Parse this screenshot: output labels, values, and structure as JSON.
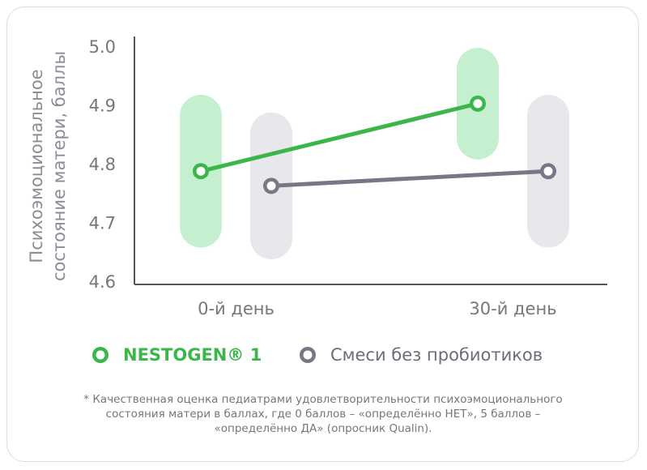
{
  "chart_data": {
    "type": "line",
    "y_label": [
      "Психоэмоциональное",
      "состояние матери, баллы"
    ],
    "categories": [
      "0-й день",
      "30-й день"
    ],
    "series": [
      {
        "name": "NESTOGEN® 1",
        "color": "#3cb54a",
        "range_color": "#c5f0d0",
        "values": [
          4.79,
          4.905
        ],
        "range_low": [
          4.66,
          4.81
        ],
        "range_high": [
          4.92,
          5.0
        ]
      },
      {
        "name": "Смеси без пробиотиков",
        "color": "#767985",
        "range_color": "#e8e8ec",
        "values": [
          4.765,
          4.79
        ],
        "range_low": [
          4.64,
          4.66
        ],
        "range_high": [
          4.89,
          4.92
        ]
      }
    ],
    "ylim": [
      4.6,
      5.0
    ],
    "yticks": [
      4.6,
      4.7,
      4.8,
      4.9,
      {
        "value": 5.0,
        "label": "5.0"
      }
    ],
    "footnote": [
      "* Качественная оценка педиатрами удовлетворительности психоэмоционального",
      "состояния матери в баллах, где 0 баллов – «определённо НЕТ», 5 баллов –",
      "«определённо ДА» (опросник Qualin)."
    ]
  }
}
